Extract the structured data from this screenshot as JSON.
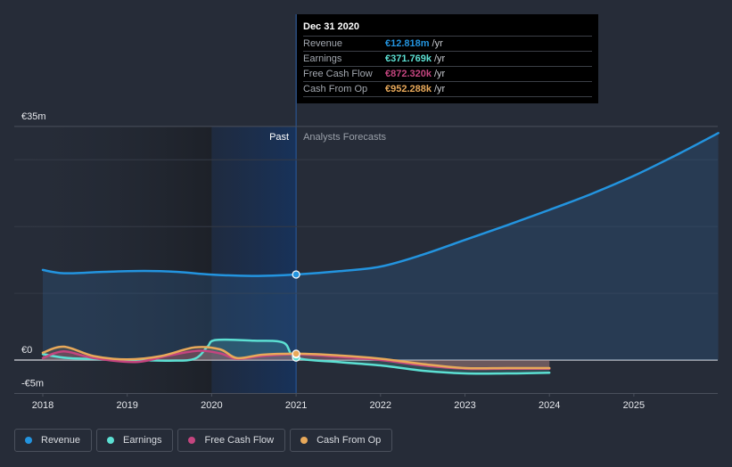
{
  "chart_data": {
    "type": "line",
    "title": "",
    "xlabel": "",
    "ylabel": "",
    "x_ticks": [
      2018,
      2019,
      2020,
      2021,
      2022,
      2023,
      2024,
      2025
    ],
    "x_tick_labels": [
      "2018",
      "2019",
      "2020",
      "2021",
      "2022",
      "2023",
      "2024",
      "2025"
    ],
    "xlim": [
      2017.7,
      2026.0
    ],
    "ylim": [
      -5,
      35
    ],
    "y_labeled_ticks": [
      {
        "value": 35,
        "label": "€35m"
      },
      {
        "value": 0,
        "label": "€0"
      },
      {
        "value": -5,
        "label": "-€5m"
      }
    ],
    "y_gridlines": [
      35,
      30,
      20,
      10,
      0,
      -5
    ],
    "units": "EUR millions",
    "grid": true,
    "regions": {
      "past_label": "Past",
      "forecast_label": "Analysts Forecasts",
      "divider_x": 2021.0,
      "highlight_start": 2020.0
    },
    "series": [
      {
        "name": "Revenue",
        "color": "#2394df",
        "filled": true,
        "points": [
          [
            2018.0,
            13.5
          ],
          [
            2018.25,
            13.0
          ],
          [
            2018.7,
            13.2
          ],
          [
            2019.2,
            13.35
          ],
          [
            2019.6,
            13.2
          ],
          [
            2020.0,
            12.8
          ],
          [
            2020.5,
            12.6
          ],
          [
            2021.0,
            12.82
          ],
          [
            2021.5,
            13.3
          ],
          [
            2022.0,
            14.0
          ],
          [
            2022.5,
            15.8
          ],
          [
            2023.0,
            18.0
          ],
          [
            2023.5,
            20.2
          ],
          [
            2024.0,
            22.5
          ],
          [
            2024.5,
            24.9
          ],
          [
            2025.0,
            27.6
          ],
          [
            2025.5,
            30.7
          ],
          [
            2026.0,
            34.0
          ]
        ]
      },
      {
        "name": "Earnings",
        "color": "#5ce0d3",
        "filled": true,
        "points": [
          [
            2018.0,
            0.9
          ],
          [
            2018.3,
            0.3
          ],
          [
            2018.8,
            0.1
          ],
          [
            2019.5,
            -0.1
          ],
          [
            2019.8,
            0.2
          ],
          [
            2019.95,
            2.0
          ],
          [
            2020.05,
            3.0
          ],
          [
            2020.5,
            2.9
          ],
          [
            2020.85,
            2.6
          ],
          [
            2021.0,
            0.37
          ],
          [
            2021.5,
            -0.3
          ],
          [
            2022.0,
            -0.8
          ],
          [
            2022.5,
            -1.6
          ],
          [
            2023.0,
            -2.0
          ],
          [
            2023.5,
            -2.0
          ],
          [
            2024.0,
            -1.9
          ]
        ]
      },
      {
        "name": "Free Cash Flow",
        "color": "#c4457f",
        "filled": true,
        "points": [
          [
            2018.0,
            0.3
          ],
          [
            2018.25,
            1.3
          ],
          [
            2018.6,
            0.3
          ],
          [
            2019.1,
            -0.3
          ],
          [
            2019.5,
            0.7
          ],
          [
            2019.85,
            1.4
          ],
          [
            2020.1,
            1.0
          ],
          [
            2020.3,
            0.2
          ],
          [
            2020.6,
            0.6
          ],
          [
            2021.0,
            0.87
          ],
          [
            2021.5,
            0.5
          ],
          [
            2022.0,
            0.0
          ],
          [
            2022.5,
            -0.8
          ],
          [
            2023.0,
            -1.3
          ],
          [
            2023.5,
            -1.3
          ],
          [
            2024.0,
            -1.3
          ]
        ]
      },
      {
        "name": "Cash From Op",
        "color": "#e8a95a",
        "filled": true,
        "points": [
          [
            2018.0,
            1.1
          ],
          [
            2018.25,
            2.0
          ],
          [
            2018.6,
            0.6
          ],
          [
            2019.0,
            0.1
          ],
          [
            2019.4,
            0.6
          ],
          [
            2019.8,
            1.9
          ],
          [
            2020.1,
            1.6
          ],
          [
            2020.3,
            0.3
          ],
          [
            2020.6,
            0.8
          ],
          [
            2021.0,
            0.95
          ],
          [
            2021.5,
            0.7
          ],
          [
            2022.0,
            0.2
          ],
          [
            2022.5,
            -0.6
          ],
          [
            2023.0,
            -1.2
          ],
          [
            2023.5,
            -1.2
          ],
          [
            2024.0,
            -1.2
          ]
        ]
      }
    ],
    "tooltip": {
      "date": "Dec 31 2020",
      "rows": [
        {
          "name": "Revenue",
          "value": "€12.818m",
          "unit": "/yr",
          "color": "#2394df"
        },
        {
          "name": "Earnings",
          "value": "€371.769k",
          "unit": "/yr",
          "color": "#5ce0d3"
        },
        {
          "name": "Free Cash Flow",
          "value": "€872.320k",
          "unit": "/yr",
          "color": "#c4457f"
        },
        {
          "name": "Cash From Op",
          "value": "€952.288k",
          "unit": "/yr",
          "color": "#e8a95a"
        }
      ]
    },
    "legend": {
      "placement": "bottom-left",
      "items": [
        {
          "label": "Revenue",
          "color": "#2394df"
        },
        {
          "label": "Earnings",
          "color": "#5ce0d3"
        },
        {
          "label": "Free Cash Flow",
          "color": "#c4457f"
        },
        {
          "label": "Cash From Op",
          "color": "#e8a95a"
        }
      ]
    }
  }
}
